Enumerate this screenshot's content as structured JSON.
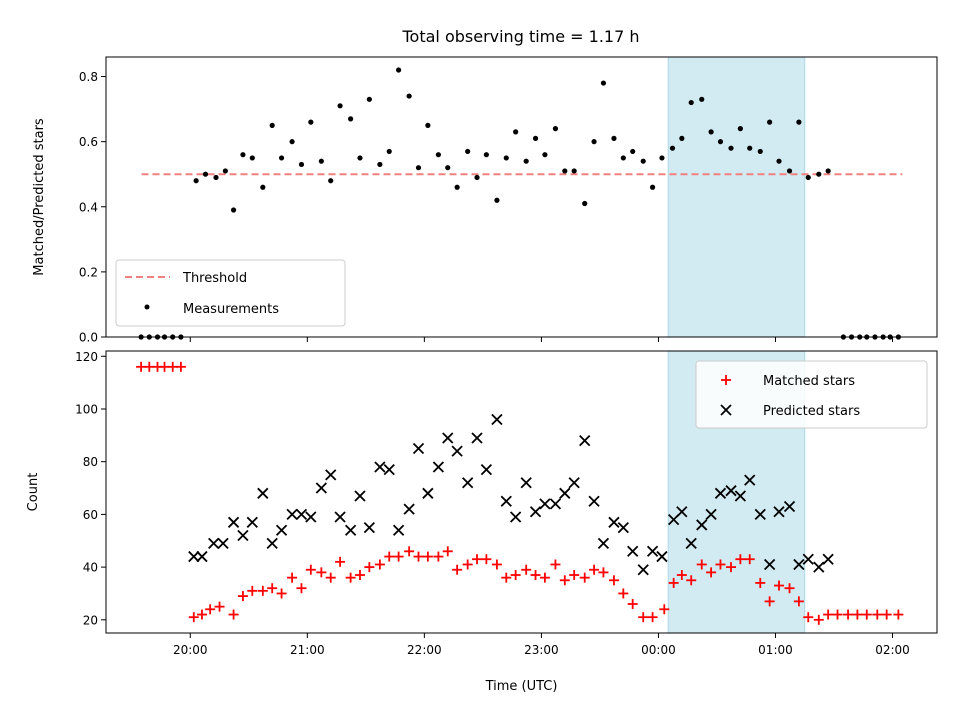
{
  "figure": {
    "title": "Total observing time = 1.17 h"
  },
  "colors": {
    "threshold": "#f08080",
    "measurement": "#000000",
    "matched": "#ff0000",
    "predicted": "#000000",
    "highlight": "#add8e6"
  },
  "chart_data": [
    {
      "type": "scatter",
      "ylabel": "Matched/Predicted stars",
      "xlabel": "",
      "x_range_hours": [
        19.28,
        26.38
      ],
      "ylim": [
        0.0,
        0.86
      ],
      "yticks": [
        0.0,
        0.2,
        0.4,
        0.6,
        0.8
      ],
      "ytick_labels": [
        "0.0",
        "0.2",
        "0.4",
        "0.6",
        "0.8"
      ],
      "xtick_labels_shown": false,
      "grid": false,
      "highlight_span": {
        "start": "00:05",
        "end": "01:15"
      },
      "threshold": {
        "name": "Threshold",
        "value": 0.5,
        "from": "19:35",
        "to": "02:05",
        "style": "dashed"
      },
      "legend": {
        "position": "lower-left",
        "entries": [
          "Threshold",
          "Measurements"
        ]
      },
      "series": [
        {
          "name": "Measurements",
          "marker": "dot",
          "points": [
            [
              19.58,
              0.0
            ],
            [
              19.65,
              0.0
            ],
            [
              19.72,
              0.0
            ],
            [
              19.78,
              0.0
            ],
            [
              19.85,
              0.0
            ],
            [
              19.92,
              0.0
            ],
            [
              20.05,
              0.48
            ],
            [
              20.13,
              0.5
            ],
            [
              20.22,
              0.49
            ],
            [
              20.3,
              0.51
            ],
            [
              20.37,
              0.39
            ],
            [
              20.45,
              0.56
            ],
            [
              20.53,
              0.55
            ],
            [
              20.62,
              0.46
            ],
            [
              20.7,
              0.65
            ],
            [
              20.78,
              0.55
            ],
            [
              20.87,
              0.6
            ],
            [
              20.95,
              0.53
            ],
            [
              21.03,
              0.66
            ],
            [
              21.12,
              0.54
            ],
            [
              21.2,
              0.48
            ],
            [
              21.28,
              0.71
            ],
            [
              21.37,
              0.67
            ],
            [
              21.45,
              0.55
            ],
            [
              21.53,
              0.73
            ],
            [
              21.62,
              0.53
            ],
            [
              21.7,
              0.57
            ],
            [
              21.78,
              0.82
            ],
            [
              21.87,
              0.74
            ],
            [
              21.95,
              0.52
            ],
            [
              22.03,
              0.65
            ],
            [
              22.12,
              0.56
            ],
            [
              22.2,
              0.52
            ],
            [
              22.28,
              0.46
            ],
            [
              22.37,
              0.57
            ],
            [
              22.45,
              0.49
            ],
            [
              22.53,
              0.56
            ],
            [
              22.62,
              0.42
            ],
            [
              22.7,
              0.55
            ],
            [
              22.78,
              0.63
            ],
            [
              22.87,
              0.54
            ],
            [
              22.95,
              0.61
            ],
            [
              23.03,
              0.56
            ],
            [
              23.12,
              0.64
            ],
            [
              23.2,
              0.51
            ],
            [
              23.28,
              0.51
            ],
            [
              23.37,
              0.41
            ],
            [
              23.45,
              0.6
            ],
            [
              23.53,
              0.78
            ],
            [
              23.62,
              0.61
            ],
            [
              23.7,
              0.55
            ],
            [
              23.78,
              0.57
            ],
            [
              23.87,
              0.54
            ],
            [
              23.95,
              0.46
            ],
            [
              24.03,
              0.55
            ],
            [
              24.12,
              0.58
            ],
            [
              24.2,
              0.61
            ],
            [
              24.28,
              0.72
            ],
            [
              24.37,
              0.73
            ],
            [
              24.45,
              0.63
            ],
            [
              24.53,
              0.6
            ],
            [
              24.62,
              0.58
            ],
            [
              24.7,
              0.64
            ],
            [
              24.78,
              0.58
            ],
            [
              24.87,
              0.57
            ],
            [
              24.95,
              0.66
            ],
            [
              25.03,
              0.54
            ],
            [
              25.12,
              0.51
            ],
            [
              25.2,
              0.66
            ],
            [
              25.28,
              0.49
            ],
            [
              25.37,
              0.5
            ],
            [
              25.45,
              0.51
            ],
            [
              25.58,
              0.0
            ],
            [
              25.65,
              0.0
            ],
            [
              25.72,
              0.0
            ],
            [
              25.78,
              0.0
            ],
            [
              25.85,
              0.0
            ],
            [
              25.92,
              0.0
            ],
            [
              25.98,
              0.0
            ],
            [
              26.05,
              0.0
            ]
          ]
        }
      ]
    },
    {
      "type": "scatter",
      "ylabel": "Count",
      "xlabel": "Time (UTC)",
      "x_range_hours": [
        19.28,
        26.38
      ],
      "ylim": [
        15,
        122
      ],
      "yticks": [
        20,
        40,
        60,
        80,
        100,
        120
      ],
      "ytick_labels": [
        "20",
        "40",
        "60",
        "80",
        "100",
        "120"
      ],
      "xticks_hours": [
        20,
        21,
        22,
        23,
        24,
        25,
        26
      ],
      "xtick_labels": [
        "20:00",
        "21:00",
        "22:00",
        "23:00",
        "00:00",
        "01:00",
        "02:00"
      ],
      "grid": false,
      "highlight_span": {
        "start": "00:05",
        "end": "01:15"
      },
      "legend": {
        "position": "top-right",
        "entries": [
          "Matched stars",
          "Predicted stars"
        ]
      },
      "series": [
        {
          "name": "Matched stars",
          "marker": "plus",
          "points": [
            [
              19.58,
              116
            ],
            [
              19.65,
              116
            ],
            [
              19.72,
              116
            ],
            [
              19.78,
              116
            ],
            [
              19.85,
              116
            ],
            [
              19.92,
              116
            ],
            [
              20.03,
              21
            ],
            [
              20.1,
              22
            ],
            [
              20.17,
              24
            ],
            [
              20.25,
              25
            ],
            [
              20.37,
              22
            ],
            [
              20.45,
              29
            ],
            [
              20.53,
              31
            ],
            [
              20.62,
              31
            ],
            [
              20.7,
              32
            ],
            [
              20.78,
              30
            ],
            [
              20.87,
              36
            ],
            [
              20.95,
              32
            ],
            [
              21.03,
              39
            ],
            [
              21.12,
              38
            ],
            [
              21.2,
              36
            ],
            [
              21.28,
              42
            ],
            [
              21.37,
              36
            ],
            [
              21.45,
              37
            ],
            [
              21.53,
              40
            ],
            [
              21.62,
              41
            ],
            [
              21.7,
              44
            ],
            [
              21.78,
              44
            ],
            [
              21.87,
              46
            ],
            [
              21.95,
              44
            ],
            [
              22.03,
              44
            ],
            [
              22.12,
              44
            ],
            [
              22.2,
              46
            ],
            [
              22.28,
              39
            ],
            [
              22.37,
              41
            ],
            [
              22.45,
              43
            ],
            [
              22.53,
              43
            ],
            [
              22.62,
              41
            ],
            [
              22.7,
              36
            ],
            [
              22.78,
              37
            ],
            [
              22.87,
              39
            ],
            [
              22.95,
              37
            ],
            [
              23.03,
              36
            ],
            [
              23.12,
              41
            ],
            [
              23.2,
              35
            ],
            [
              23.28,
              37
            ],
            [
              23.37,
              36
            ],
            [
              23.45,
              39
            ],
            [
              23.53,
              38
            ],
            [
              23.62,
              35
            ],
            [
              23.7,
              30
            ],
            [
              23.78,
              26
            ],
            [
              23.87,
              21
            ],
            [
              23.95,
              21
            ],
            [
              24.05,
              24
            ],
            [
              24.13,
              34
            ],
            [
              24.2,
              37
            ],
            [
              24.28,
              35
            ],
            [
              24.37,
              41
            ],
            [
              24.45,
              38
            ],
            [
              24.53,
              41
            ],
            [
              24.62,
              40
            ],
            [
              24.7,
              43
            ],
            [
              24.78,
              43
            ],
            [
              24.87,
              34
            ],
            [
              24.95,
              27
            ],
            [
              25.03,
              33
            ],
            [
              25.12,
              32
            ],
            [
              25.2,
              27
            ],
            [
              25.28,
              21
            ],
            [
              25.37,
              20
            ],
            [
              25.45,
              22
            ],
            [
              25.53,
              22
            ],
            [
              25.62,
              22
            ],
            [
              25.7,
              22
            ],
            [
              25.78,
              22
            ],
            [
              25.87,
              22
            ],
            [
              25.95,
              22
            ],
            [
              26.05,
              22
            ]
          ]
        },
        {
          "name": "Predicted stars",
          "marker": "x",
          "points": [
            [
              20.03,
              44
            ],
            [
              20.1,
              44
            ],
            [
              20.2,
              49
            ],
            [
              20.28,
              49
            ],
            [
              20.37,
              57
            ],
            [
              20.45,
              52
            ],
            [
              20.53,
              57
            ],
            [
              20.62,
              68
            ],
            [
              20.7,
              49
            ],
            [
              20.78,
              54
            ],
            [
              20.87,
              60
            ],
            [
              20.95,
              60
            ],
            [
              21.03,
              59
            ],
            [
              21.12,
              70
            ],
            [
              21.2,
              75
            ],
            [
              21.28,
              59
            ],
            [
              21.37,
              54
            ],
            [
              21.45,
              67
            ],
            [
              21.53,
              55
            ],
            [
              21.62,
              78
            ],
            [
              21.7,
              77
            ],
            [
              21.78,
              54
            ],
            [
              21.87,
              62
            ],
            [
              21.95,
              85
            ],
            [
              22.03,
              68
            ],
            [
              22.12,
              78
            ],
            [
              22.2,
              89
            ],
            [
              22.28,
              84
            ],
            [
              22.37,
              72
            ],
            [
              22.45,
              89
            ],
            [
              22.53,
              77
            ],
            [
              22.62,
              96
            ],
            [
              22.7,
              65
            ],
            [
              22.78,
              59
            ],
            [
              22.87,
              72
            ],
            [
              22.95,
              61
            ],
            [
              23.03,
              64
            ],
            [
              23.12,
              64
            ],
            [
              23.2,
              68
            ],
            [
              23.28,
              72
            ],
            [
              23.37,
              88
            ],
            [
              23.45,
              65
            ],
            [
              23.53,
              49
            ],
            [
              23.62,
              57
            ],
            [
              23.7,
              55
            ],
            [
              23.78,
              46
            ],
            [
              23.87,
              39
            ],
            [
              23.95,
              46
            ],
            [
              24.03,
              44
            ],
            [
              24.13,
              58
            ],
            [
              24.2,
              61
            ],
            [
              24.28,
              49
            ],
            [
              24.37,
              56
            ],
            [
              24.45,
              60
            ],
            [
              24.53,
              68
            ],
            [
              24.62,
              69
            ],
            [
              24.7,
              67
            ],
            [
              24.78,
              73
            ],
            [
              24.87,
              60
            ],
            [
              24.95,
              41
            ],
            [
              25.03,
              61
            ],
            [
              25.12,
              63
            ],
            [
              25.2,
              41
            ],
            [
              25.28,
              43
            ],
            [
              25.37,
              40
            ],
            [
              25.45,
              43
            ]
          ]
        }
      ]
    }
  ]
}
